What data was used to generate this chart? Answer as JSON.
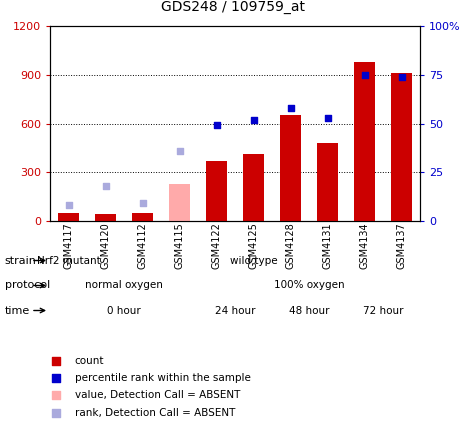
{
  "title": "GDS248 / 109759_at",
  "samples": [
    "GSM4117",
    "GSM4120",
    "GSM4112",
    "GSM4115",
    "GSM4122",
    "GSM4125",
    "GSM4128",
    "GSM4131",
    "GSM4134",
    "GSM4137"
  ],
  "count_values": [
    50,
    45,
    50,
    null,
    370,
    415,
    650,
    480,
    980,
    910
  ],
  "count_absent": [
    null,
    null,
    null,
    230,
    null,
    null,
    null,
    null,
    null,
    null
  ],
  "rank_values": [
    null,
    null,
    null,
    null,
    49,
    52,
    58,
    53,
    75,
    74
  ],
  "rank_absent": [
    8,
    18,
    9,
    36,
    null,
    null,
    null,
    null,
    null,
    null
  ],
  "ylim_left": [
    0,
    1200
  ],
  "ylim_right": [
    0,
    100
  ],
  "yticks_left": [
    0,
    300,
    600,
    900,
    1200
  ],
  "yticks_right": [
    0,
    25,
    50,
    75,
    100
  ],
  "color_count": "#cc0000",
  "color_rank": "#0000cc",
  "color_count_absent": "#ffaaaa",
  "color_rank_absent": "#aaaadd",
  "strain_groups": [
    {
      "label": "Nrf2 mutant",
      "start": 0,
      "end": 1,
      "color": "#88cc66"
    },
    {
      "label": "wild type",
      "start": 1,
      "end": 10,
      "color": "#66cc44"
    }
  ],
  "protocol_groups": [
    {
      "label": "normal oxygen",
      "start": 0,
      "end": 4,
      "color": "#aaaaee"
    },
    {
      "label": "100% oxygen",
      "start": 4,
      "end": 10,
      "color": "#8888dd"
    }
  ],
  "time_groups": [
    {
      "label": "0 hour",
      "start": 0,
      "end": 4,
      "color": "#ffdddd"
    },
    {
      "label": "24 hour",
      "start": 4,
      "end": 6,
      "color": "#ffbbbb"
    },
    {
      "label": "48 hour",
      "start": 6,
      "end": 8,
      "color": "#ee9999"
    },
    {
      "label": "72 hour",
      "start": 8,
      "end": 10,
      "color": "#cc7777"
    }
  ],
  "legend_items": [
    {
      "label": "count",
      "color": "#cc0000"
    },
    {
      "label": "percentile rank within the sample",
      "color": "#0000cc"
    },
    {
      "label": "value, Detection Call = ABSENT",
      "color": "#ffaaaa"
    },
    {
      "label": "rank, Detection Call = ABSENT",
      "color": "#aaaadd"
    }
  ]
}
